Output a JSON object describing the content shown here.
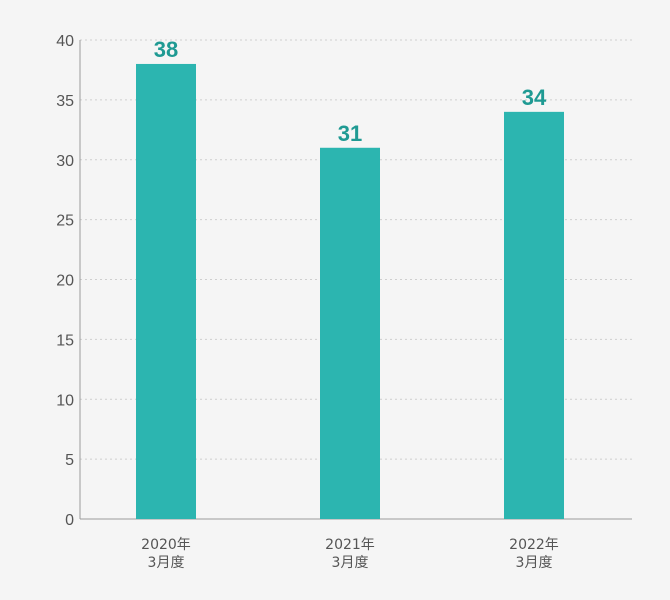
{
  "colors": {
    "bar": "#2cb5b0",
    "data_label": "#1f9a93",
    "background": "#f5f5f5"
  },
  "chart_data": {
    "type": "bar",
    "categories": [
      [
        "2020年",
        "3月度"
      ],
      [
        "2021年",
        "3月度"
      ],
      [
        "2022年",
        "3月度"
      ]
    ],
    "values": [
      38,
      31,
      34
    ],
    "value_labels": [
      "38",
      "31",
      "34"
    ],
    "title": "",
    "xlabel": "",
    "ylabel": "",
    "ylim": [
      0,
      40
    ],
    "yticks": [
      0,
      5,
      10,
      15,
      20,
      25,
      30,
      35,
      40
    ],
    "ytick_labels": [
      "0",
      "5",
      "10",
      "15",
      "20",
      "25",
      "30",
      "35",
      "40"
    ],
    "grid": true,
    "legend": "none"
  }
}
